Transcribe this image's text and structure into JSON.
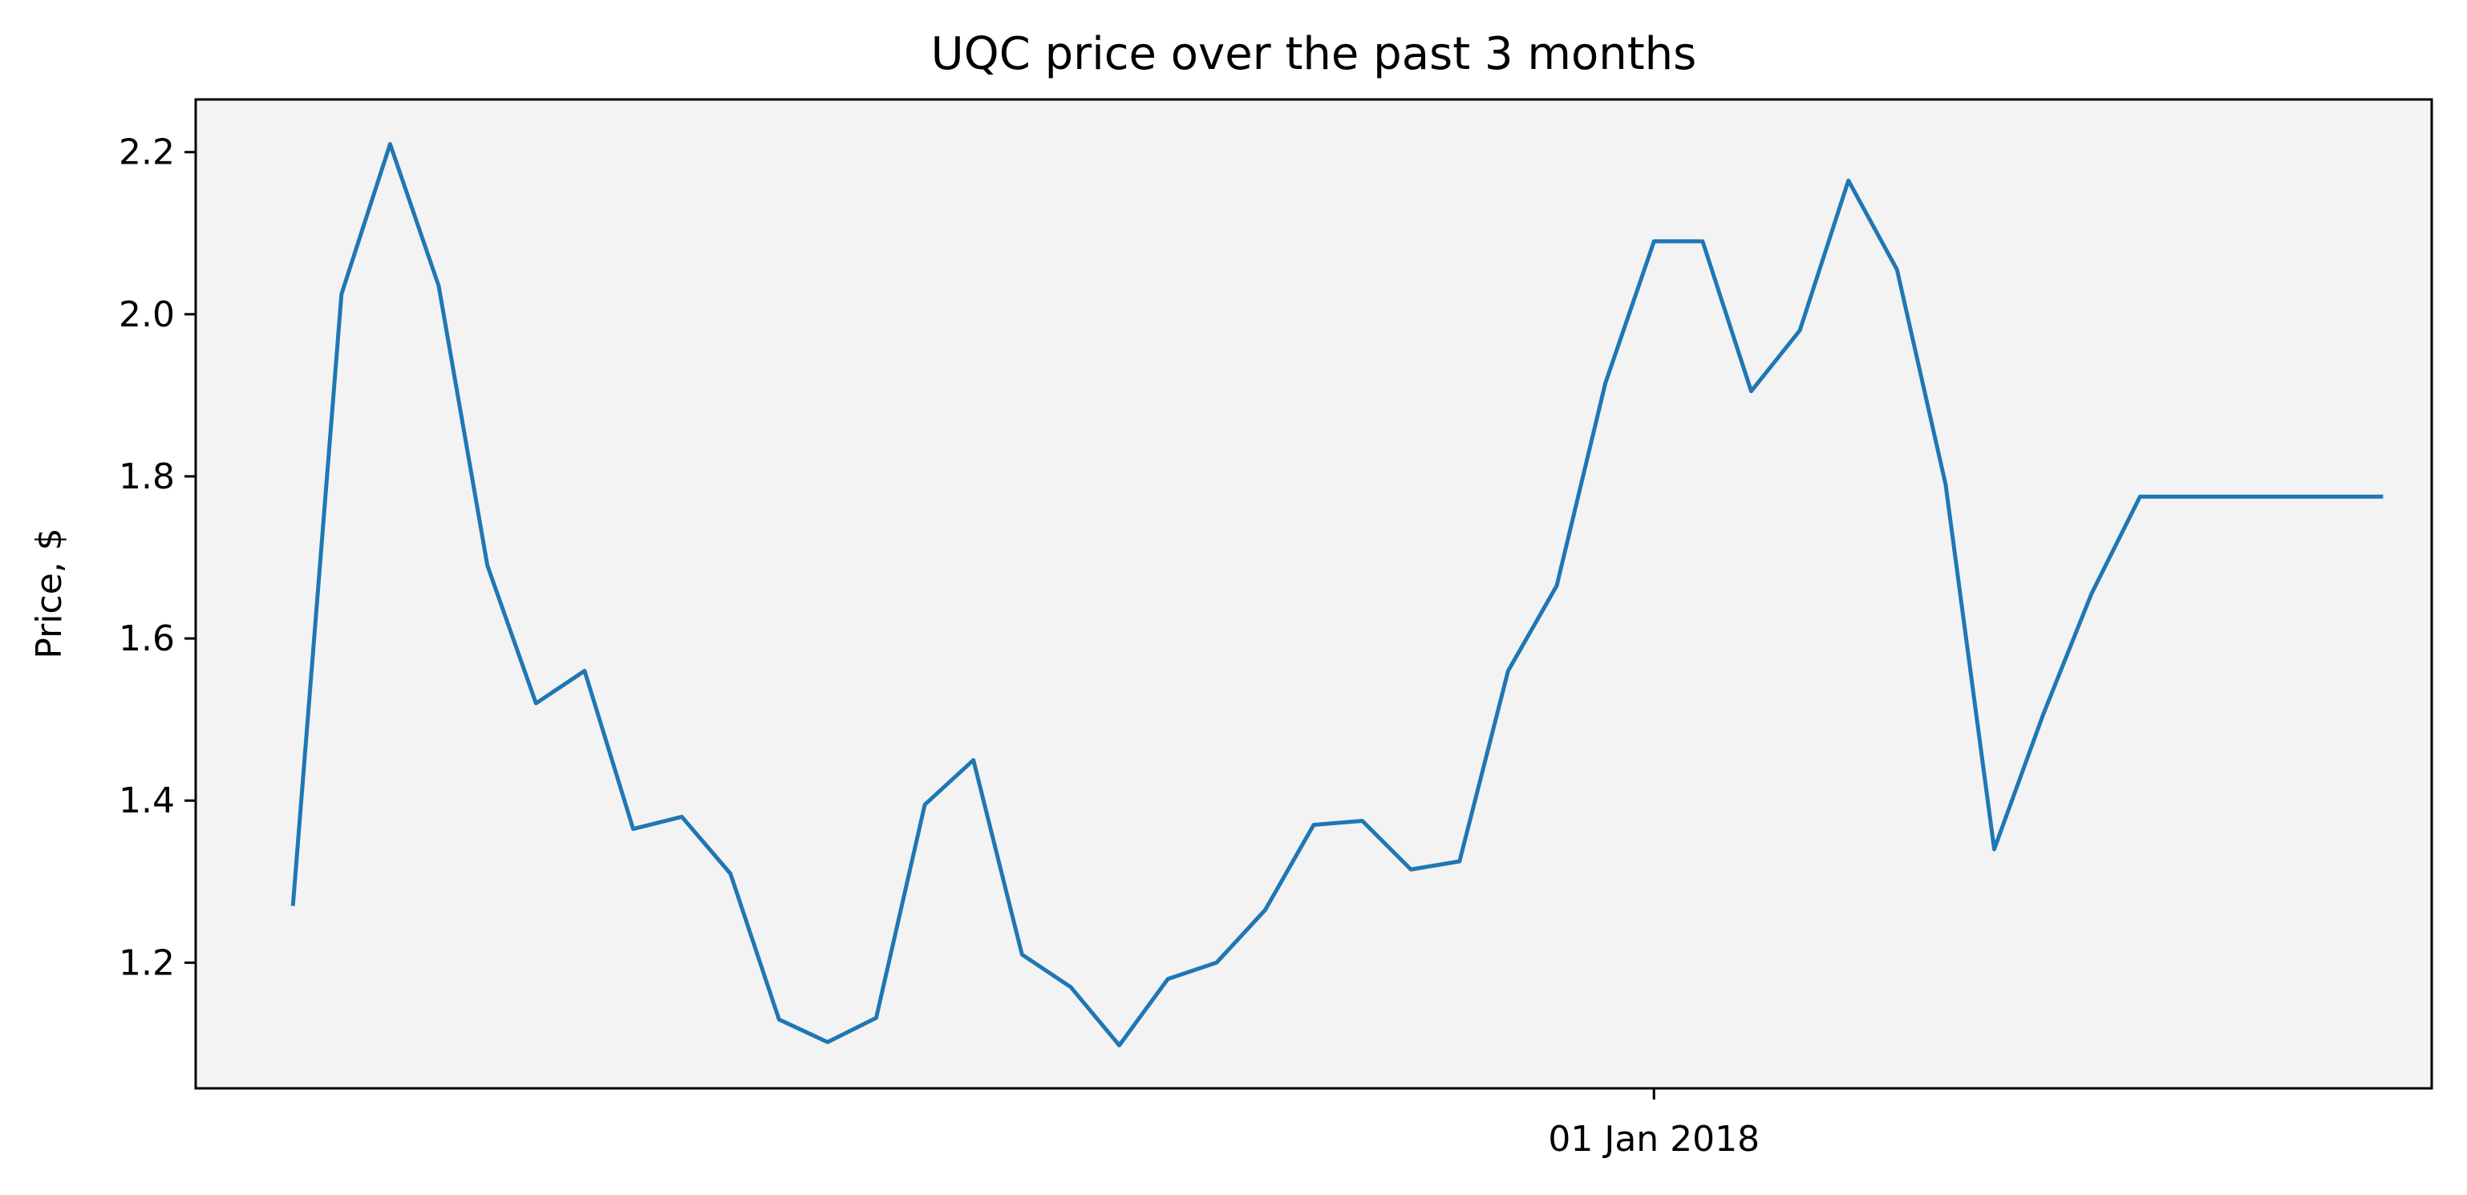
{
  "chart_data": {
    "type": "line",
    "title": "UQC price over the past 3 months",
    "xlabel": "",
    "ylabel": "Price, $",
    "ylim": [
      1.045,
      2.265
    ],
    "yticks": [
      1.2,
      1.4,
      1.6,
      1.8,
      2.0,
      2.2
    ],
    "ytick_labels": [
      "1.2",
      "1.4",
      "1.6",
      "1.8",
      "2.0",
      "2.2"
    ],
    "xlim": [
      "2017-11-02",
      "2018-02-02"
    ],
    "xticks": [
      "2018-01-01"
    ],
    "xtick_labels": [
      "01 Jan 2018"
    ],
    "grid": false,
    "background": "#f3f3f3",
    "series": [
      {
        "color": "#1f77b4",
        "x": [
          "2017-11-06",
          "2017-11-08",
          "2017-11-10",
          "2017-11-12",
          "2017-11-14",
          "2017-11-16",
          "2017-11-18",
          "2017-11-20",
          "2017-11-22",
          "2017-11-24",
          "2017-11-26",
          "2017-11-28",
          "2017-11-30",
          "2017-12-02",
          "2017-12-04",
          "2017-12-06",
          "2017-12-08",
          "2017-12-10",
          "2017-12-12",
          "2017-12-14",
          "2017-12-16",
          "2017-12-18",
          "2017-12-20",
          "2017-12-22",
          "2017-12-24",
          "2017-12-26",
          "2017-12-28",
          "2017-12-30",
          "2018-01-01",
          "2018-01-03",
          "2018-01-05",
          "2018-01-07",
          "2018-01-09",
          "2018-01-11",
          "2018-01-13",
          "2018-01-15",
          "2018-01-17",
          "2018-01-19",
          "2018-01-21",
          "2018-01-23",
          "2018-01-25",
          "2018-01-27",
          "2018-01-29",
          "2018-01-31"
        ],
        "values": [
          1.27,
          2.025,
          2.21,
          2.035,
          1.69,
          1.52,
          1.56,
          1.365,
          1.38,
          1.31,
          1.13,
          1.102,
          1.132,
          1.395,
          1.45,
          1.21,
          1.17,
          1.098,
          1.18,
          1.2,
          1.265,
          1.37,
          1.375,
          1.315,
          1.325,
          1.56,
          1.665,
          1.915,
          2.09,
          2.09,
          1.905,
          1.98,
          2.165,
          2.055,
          1.79,
          1.34,
          1.505,
          1.655,
          1.775,
          1.775,
          1.775,
          1.775,
          1.775,
          1.775
        ]
      }
    ]
  }
}
